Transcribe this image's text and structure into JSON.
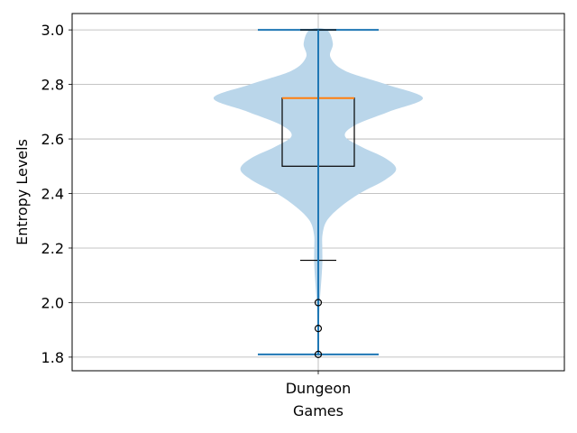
{
  "chart_data": {
    "type": "violin",
    "title": "",
    "xlabel": "Games",
    "ylabel": "Entropy Levels",
    "categories": [
      "Dungeon"
    ],
    "ylim": [
      1.75,
      3.06
    ],
    "yticks": [
      1.8,
      2.0,
      2.2,
      2.4,
      2.6,
      2.8,
      3.0
    ],
    "ytick_labels": [
      "1.8",
      "2.0",
      "2.2",
      "2.4",
      "2.6",
      "2.8",
      "3.0"
    ],
    "grid": true,
    "violin": {
      "min": 1.81,
      "max": 3.0,
      "density": [
        [
          1.81,
          0.005
        ],
        [
          1.85,
          0.006
        ],
        [
          1.9,
          0.007
        ],
        [
          1.95,
          0.008
        ],
        [
          2.0,
          0.012
        ],
        [
          2.05,
          0.02
        ],
        [
          2.1,
          0.028
        ],
        [
          2.15,
          0.034
        ],
        [
          2.2,
          0.033
        ],
        [
          2.25,
          0.035
        ],
        [
          2.3,
          0.07
        ],
        [
          2.35,
          0.18
        ],
        [
          2.4,
          0.34
        ],
        [
          2.45,
          0.55
        ],
        [
          2.49,
          0.64
        ],
        [
          2.53,
          0.55
        ],
        [
          2.57,
          0.36
        ],
        [
          2.61,
          0.22
        ],
        [
          2.65,
          0.3
        ],
        [
          2.7,
          0.58
        ],
        [
          2.75,
          0.86
        ],
        [
          2.8,
          0.56
        ],
        [
          2.85,
          0.22
        ],
        [
          2.9,
          0.1
        ],
        [
          2.95,
          0.12
        ],
        [
          3.0,
          0.07
        ]
      ]
    },
    "boxplot": {
      "q1": 2.5,
      "median": 2.75,
      "q3": 2.75,
      "whisker_low": 2.155,
      "whisker_high": 3.0,
      "fliers": [
        2.0,
        1.905,
        1.81
      ]
    },
    "colors": {
      "violin_fill": "#bad6ea",
      "violin_lines": "#1f77b4",
      "median": "#ff7f0e",
      "box": "#000000",
      "grid": "#b0b0b0",
      "spine": "#000000"
    }
  }
}
